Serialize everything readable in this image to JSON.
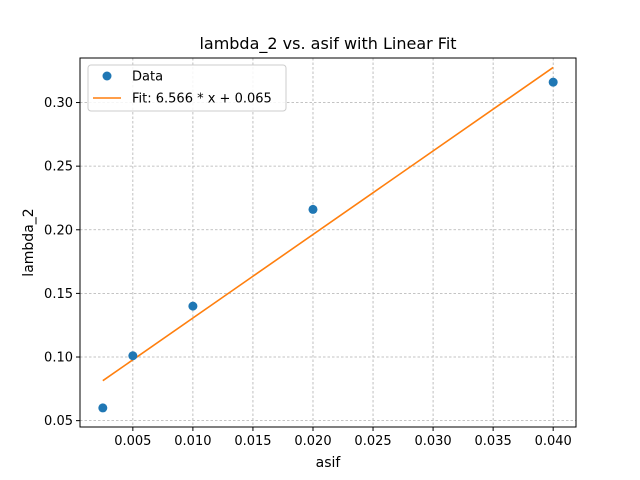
{
  "chart_data": {
    "type": "scatter",
    "title": "lambda_2 vs. asif with Linear Fit",
    "xlabel": "asif",
    "ylabel": "lambda_2",
    "xlim": [
      0.0006,
      0.0419
    ],
    "ylim": [
      0.045,
      0.335
    ],
    "grid": true,
    "legend_position": "top-left",
    "x_ticks": [
      {
        "value": 0.005,
        "label": "0.005"
      },
      {
        "value": 0.01,
        "label": "0.010"
      },
      {
        "value": 0.015,
        "label": "0.015"
      },
      {
        "value": 0.02,
        "label": "0.020"
      },
      {
        "value": 0.025,
        "label": "0.025"
      },
      {
        "value": 0.03,
        "label": "0.030"
      },
      {
        "value": 0.035,
        "label": "0.035"
      },
      {
        "value": 0.04,
        "label": "0.040"
      }
    ],
    "y_ticks": [
      {
        "value": 0.05,
        "label": "0.05"
      },
      {
        "value": 0.1,
        "label": "0.10"
      },
      {
        "value": 0.15,
        "label": "0.15"
      },
      {
        "value": 0.2,
        "label": "0.20"
      },
      {
        "value": 0.25,
        "label": "0.25"
      },
      {
        "value": 0.3,
        "label": "0.30"
      }
    ],
    "series": [
      {
        "name": "Data",
        "kind": "scatter",
        "color": "#1f77b4",
        "x": [
          0.0025,
          0.005,
          0.01,
          0.02,
          0.04
        ],
        "y": [
          0.06,
          0.101,
          0.14,
          0.216,
          0.316
        ]
      },
      {
        "name": "Fit: 6.566 * x + 0.065",
        "kind": "line",
        "color": "#ff7f0e",
        "x": [
          0.0025,
          0.04
        ],
        "y": [
          0.0814,
          0.3276
        ]
      }
    ]
  }
}
